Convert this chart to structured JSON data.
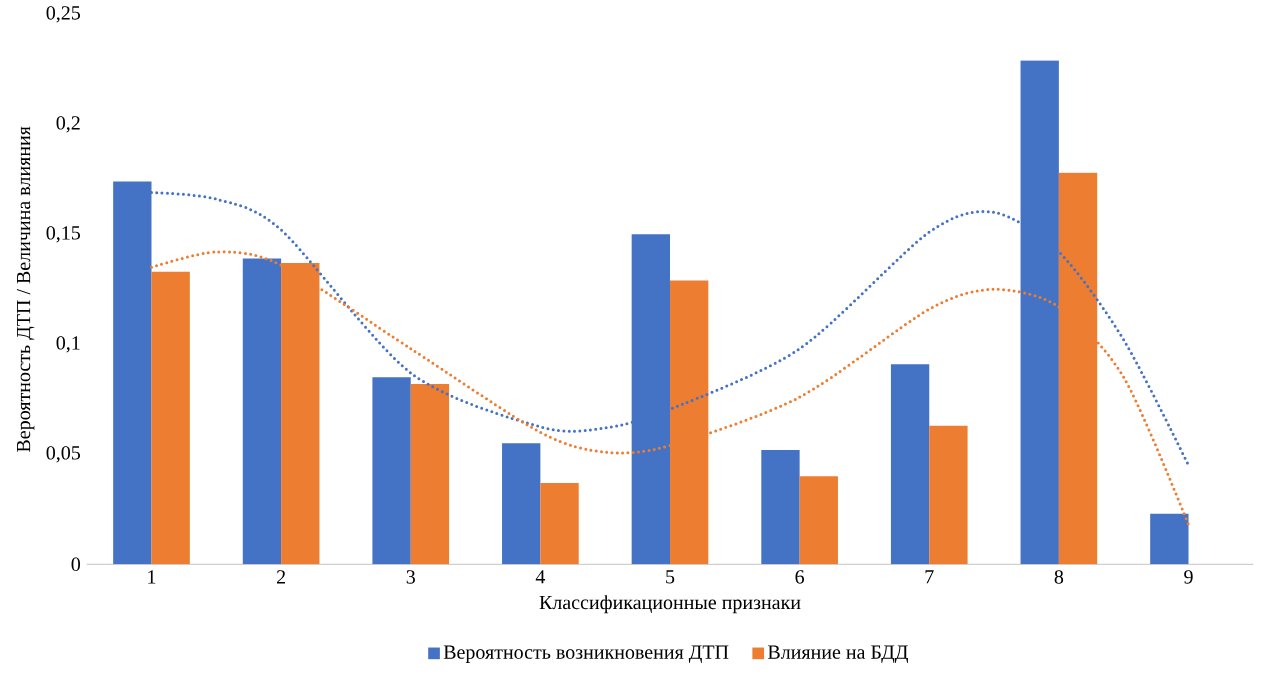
{
  "chart_data": {
    "type": "bar",
    "xlabel": "Классификационные признаки",
    "ylabel": "Вероятность ДТП / Величина влияния",
    "x": [
      1,
      2,
      3,
      4,
      5,
      6,
      7,
      8,
      9
    ],
    "xlim": [
      0.5,
      9.5
    ],
    "xticks": [
      1,
      2,
      3,
      4,
      5,
      6,
      7,
      8,
      9
    ],
    "ylim": [
      0,
      0.25
    ],
    "yticks": [
      0,
      {
        "value": 0.05,
        "label": "0,05"
      },
      {
        "value": 0.1,
        "label": "0,1"
      },
      {
        "value": 0.15,
        "label": "0,15"
      },
      {
        "value": 0.2,
        "label": "0,2"
      },
      {
        "value": 0.25,
        "label": "0,25"
      }
    ],
    "series": [
      {
        "name": "Вероятность возникновения ДТП",
        "color": "#4472c4",
        "values": [
          0.174,
          0.139,
          0.085,
          0.055,
          0.15,
          0.052,
          0.091,
          0.229,
          0.023
        ]
      },
      {
        "name": "Влияние на БДД",
        "color": "#ed7d31",
        "values": [
          0.133,
          0.137,
          0.082,
          0.037,
          0.129,
          0.04,
          0.063,
          0.178,
          0
        ]
      },
      {
        "type": "line",
        "line_style": "dotted",
        "color": "#4472c4",
        "x": [
          1,
          1.5,
          2,
          3,
          4,
          4.5,
          5,
          6,
          7,
          7.5,
          8,
          8.5,
          9
        ],
        "values": [
          0.169,
          0.166,
          0.152,
          0.087,
          0.0625,
          0.062,
          0.0705,
          0.098,
          0.151,
          0.16,
          0.142,
          0.102,
          0.045
        ]
      },
      {
        "type": "line",
        "line_style": "dotted",
        "color": "#ed7d31",
        "x": [
          1,
          1.5,
          2,
          3,
          4,
          4.5,
          5,
          6,
          7,
          7.5,
          8,
          8.5,
          9
        ],
        "values": [
          0.135,
          0.142,
          0.136,
          0.098,
          0.06,
          0.051,
          0.054,
          0.076,
          0.116,
          0.125,
          0.117,
          0.085,
          0.018
        ]
      }
    ],
    "grid": false,
    "legend": "bottom"
  }
}
